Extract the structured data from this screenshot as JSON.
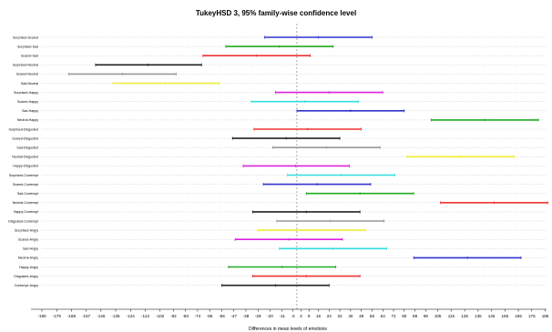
{
  "chart_data": {
    "type": "errorbar",
    "title": "TukeyHSD 3, 95% family-wise confidence level",
    "xlabel": "Differences in mean levels of emotions",
    "xlim": [
      -190,
      186
    ],
    "xticks": [
      -190,
      -179,
      -168,
      -157,
      -146,
      -135,
      -124,
      -113,
      -102,
      -92,
      -83,
      -74,
      -65,
      -56,
      -47,
      -38,
      -29,
      -20,
      -11,
      -3,
      3,
      9,
      16,
      24,
      32,
      40,
      48,
      56,
      64,
      72,
      80,
      88,
      96,
      105,
      115,
      125,
      135,
      145,
      155,
      165,
      175,
      185
    ],
    "grid": "horizontal-dotted",
    "zero_line": 0,
    "comparisons": [
      {
        "label": "Surprised-Scared",
        "lwr": -24,
        "mean": 16,
        "upr": 56,
        "color": "#3333cc"
      },
      {
        "label": "Surprised-Sad",
        "lwr": -53,
        "mean": -13,
        "upr": 27,
        "color": "#22aa22"
      },
      {
        "label": "Scared-Sad",
        "lwr": -70,
        "mean": -30,
        "upr": 10,
        "color": "#ee3333"
      },
      {
        "label": "Surprised-Neutral",
        "lwr": -150,
        "mean": -111,
        "upr": -71,
        "color": "#222222"
      },
      {
        "label": "Scared-Neutral",
        "lwr": -170,
        "mean": -130,
        "upr": -90,
        "color": "#999999"
      },
      {
        "label": "Sad-Neutral",
        "lwr": -137,
        "mean": -98,
        "upr": -58,
        "color": "#eeee33"
      },
      {
        "label": "Surprised-Happy",
        "lwr": -16,
        "mean": 24,
        "upr": 64,
        "color": "#dd22dd"
      },
      {
        "label": "Scared-Happy",
        "lwr": -34,
        "mean": 6,
        "upr": 46,
        "color": "#33dddd"
      },
      {
        "label": "Sad-Happy",
        "lwr": 0,
        "mean": 40,
        "upr": 80,
        "color": "#3333cc"
      },
      {
        "label": "Neutral-Happy",
        "lwr": 100,
        "mean": 140,
        "upr": 180,
        "color": "#22aa22"
      },
      {
        "label": "Surprised-Disgusted",
        "lwr": -32,
        "mean": 8,
        "upr": 48,
        "color": "#ee3333"
      },
      {
        "label": "Scared-Disgusted",
        "lwr": -48,
        "mean": -8,
        "upr": 32,
        "color": "#222222"
      },
      {
        "label": "Sad-Disgusted",
        "lwr": -18,
        "mean": 22,
        "upr": 62,
        "color": "#999999"
      },
      {
        "label": "Neutral-Disgusted",
        "lwr": 82,
        "mean": 122,
        "upr": 162,
        "color": "#eeee33"
      },
      {
        "label": "Happy-Disgusted",
        "lwr": -40,
        "mean": -1,
        "upr": 39,
        "color": "#dd22dd"
      },
      {
        "label": "Surprised-Contempt",
        "lwr": -7,
        "mean": 33,
        "upr": 73,
        "color": "#33dddd"
      },
      {
        "label": "Scared-Contempt",
        "lwr": -25,
        "mean": 15,
        "upr": 55,
        "color": "#3333cc"
      },
      {
        "label": "Sad-Contempt",
        "lwr": 7,
        "mean": 47,
        "upr": 87,
        "color": "#22aa22"
      },
      {
        "label": "Neutral-Contempt",
        "lwr": 107,
        "mean": 147,
        "upr": 187,
        "color": "#ee3333"
      },
      {
        "label": "Happy-Contempt",
        "lwr": -33,
        "mean": 7,
        "upr": 47,
        "color": "#222222"
      },
      {
        "label": "Disgusted-Contempt",
        "lwr": -15,
        "mean": 25,
        "upr": 65,
        "color": "#999999"
      },
      {
        "label": "Surprised-Angry",
        "lwr": -29,
        "mean": 11,
        "upr": 51,
        "color": "#eeee33"
      },
      {
        "label": "Scared-Angry",
        "lwr": -46,
        "mean": -6,
        "upr": 34,
        "color": "#dd22dd"
      },
      {
        "label": "Sad-Angry",
        "lwr": -13,
        "mean": 27,
        "upr": 67,
        "color": "#33dddd"
      },
      {
        "label": "Neutral-Angry",
        "lwr": 87,
        "mean": 127,
        "upr": 167,
        "color": "#3333cc"
      },
      {
        "label": "Happy-Angry",
        "lwr": -51,
        "mean": -11,
        "upr": 29,
        "color": "#22aa22"
      },
      {
        "label": "Disgusted-Angry",
        "lwr": -33,
        "mean": 7,
        "upr": 47,
        "color": "#ee3333"
      },
      {
        "label": "Contempt-Angry",
        "lwr": -56,
        "mean": -16,
        "upr": 24,
        "color": "#222222"
      }
    ]
  }
}
